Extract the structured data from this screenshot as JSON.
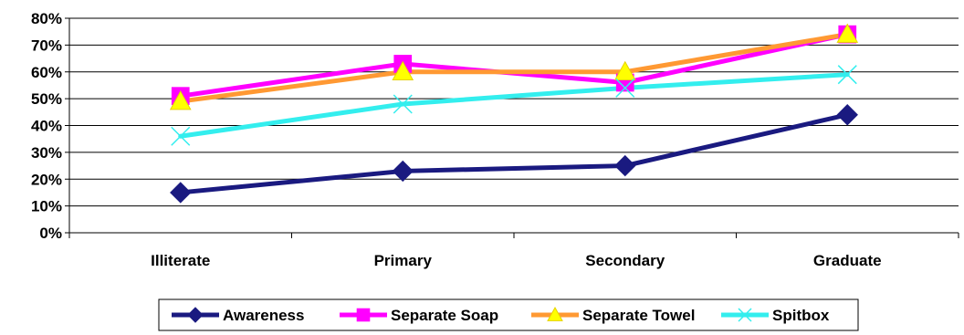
{
  "chart_data": {
    "type": "line",
    "title": "",
    "xlabel": "",
    "ylabel": "",
    "categories": [
      "Illiterate",
      "Primary",
      "Secondary",
      "Graduate"
    ],
    "ylim": [
      0,
      80
    ],
    "yticks": [
      0,
      10,
      20,
      30,
      40,
      50,
      60,
      70,
      80
    ],
    "ytick_labels": [
      "0%",
      "10%",
      "20%",
      "30%",
      "40%",
      "50%",
      "60%",
      "70%",
      "80%"
    ],
    "grid": true,
    "legend_position": "bottom",
    "series": [
      {
        "name": "Awareness",
        "values": [
          15,
          23,
          25,
          44
        ],
        "color": "#1a1a80",
        "marker": "diamond"
      },
      {
        "name": "Separate Soap",
        "values": [
          51,
          63,
          56,
          74
        ],
        "color": "#ff00ff",
        "marker": "square"
      },
      {
        "name": "Separate Towel",
        "values": [
          49,
          60,
          60,
          74
        ],
        "color": "#ff9933",
        "marker": "triangle"
      },
      {
        "name": "Spitbox",
        "values": [
          36,
          48,
          54,
          59
        ],
        "color": "#33eeee",
        "marker": "x"
      }
    ]
  }
}
